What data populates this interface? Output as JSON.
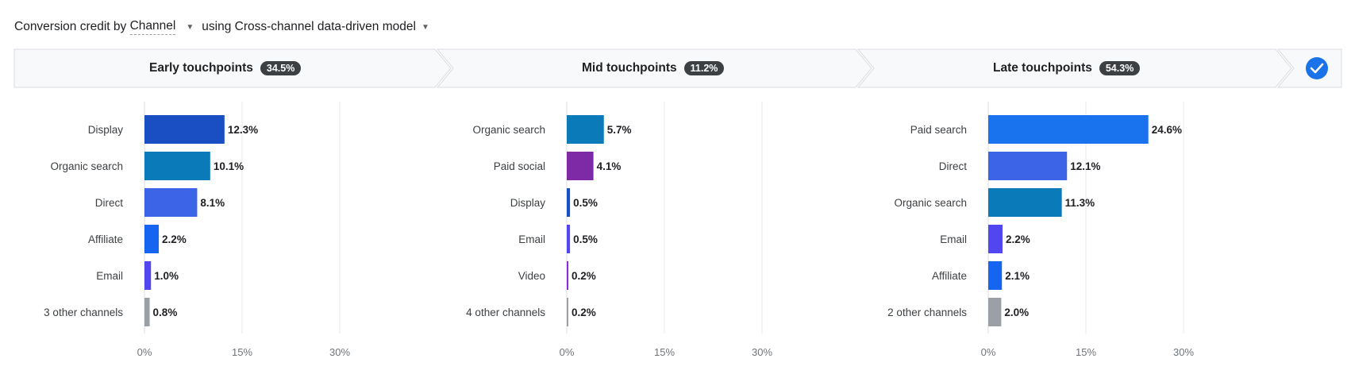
{
  "header": {
    "prefix": "Conversion credit by",
    "dimension": "Channel",
    "connector": "using Cross-channel data-driven model"
  },
  "colors": {
    "Display": "#1a4fc4",
    "Organic search": "#0a7bb8",
    "Direct": "#3c64e6",
    "Affiliate": "#1565f0",
    "Email": "#5246f0",
    "Paid search": "#1a73ee",
    "Paid social": "#7e2aa6",
    "Video": "#8a2be0",
    "other": "#9aa0a6",
    "check": "#1a73e8"
  },
  "chart_data": [
    {
      "type": "bar",
      "stage": "Early touchpoints",
      "stage_share": "34.5%",
      "categories": [
        "Display",
        "Organic search",
        "Direct",
        "Affiliate",
        "Email",
        "3 other channels"
      ],
      "values": [
        12.3,
        10.1,
        8.1,
        2.2,
        1.0,
        0.8
      ],
      "value_labels": [
        "12.3%",
        "10.1%",
        "8.1%",
        "2.2%",
        "1.0%",
        "0.8%"
      ],
      "xlim": [
        0,
        30
      ],
      "xticks": [
        "0%",
        "15%",
        "30%"
      ],
      "grid": true
    },
    {
      "type": "bar",
      "stage": "Mid touchpoints",
      "stage_share": "11.2%",
      "categories": [
        "Organic search",
        "Paid social",
        "Display",
        "Email",
        "Video",
        "4 other channels"
      ],
      "values": [
        5.7,
        4.1,
        0.5,
        0.5,
        0.2,
        0.2
      ],
      "value_labels": [
        "5.7%",
        "4.1%",
        "0.5%",
        "0.5%",
        "0.2%",
        "0.2%"
      ],
      "xlim": [
        0,
        30
      ],
      "xticks": [
        "0%",
        "15%",
        "30%"
      ],
      "grid": true
    },
    {
      "type": "bar",
      "stage": "Late touchpoints",
      "stage_share": "54.3%",
      "categories": [
        "Paid search",
        "Direct",
        "Organic search",
        "Email",
        "Affiliate",
        "2 other channels"
      ],
      "values": [
        24.6,
        12.1,
        11.3,
        2.2,
        2.1,
        2.0
      ],
      "value_labels": [
        "24.6%",
        "12.1%",
        "11.3%",
        "2.2%",
        "2.1%",
        "2.0%"
      ],
      "xlim": [
        0,
        30
      ],
      "xticks": [
        "0%",
        "15%",
        "30%"
      ],
      "grid": true
    }
  ]
}
